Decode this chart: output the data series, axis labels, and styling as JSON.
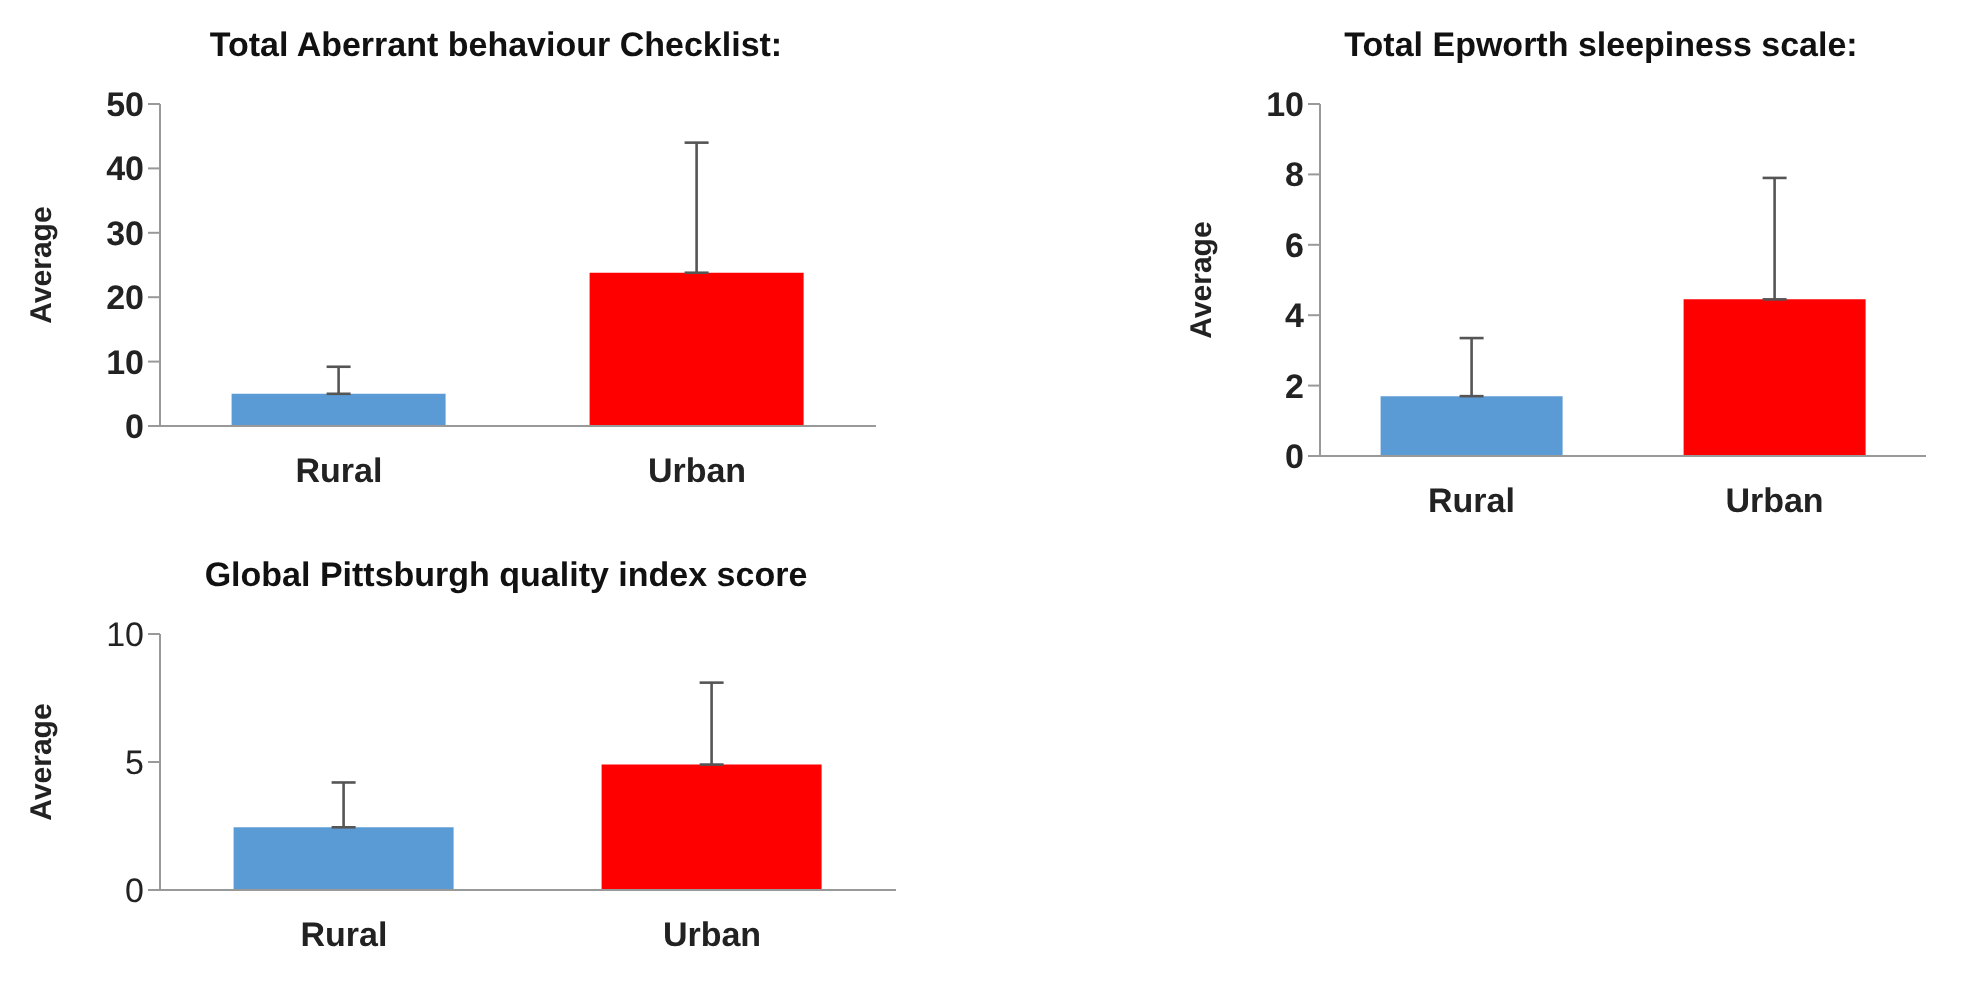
{
  "chart_data": [
    {
      "type": "bar",
      "title": "Total Aberrant behaviour Checklist:",
      "ylabel": "Average",
      "categories": [
        "Rural",
        "Urban"
      ],
      "values": [
        5,
        23.8
      ],
      "colors": [
        "#5b9bd5",
        "#ff0000"
      ],
      "errors": [
        [
          5,
          9.2
        ],
        [
          23.8,
          44
        ]
      ],
      "ylim": [
        0,
        50
      ],
      "yticks": [
        0,
        10,
        20,
        30,
        40,
        50
      ],
      "grid": false,
      "legend": false
    },
    {
      "type": "bar",
      "title": "Total Epworth sleepiness scale:",
      "ylabel": "Average",
      "categories": [
        "Rural",
        "Urban"
      ],
      "values": [
        1.7,
        4.45
      ],
      "colors": [
        "#5b9bd5",
        "#ff0000"
      ],
      "errors": [
        [
          1.7,
          3.35
        ],
        [
          4.45,
          7.9
        ]
      ],
      "ylim": [
        0,
        10
      ],
      "yticks": [
        0,
        2,
        4,
        6,
        8,
        10
      ],
      "grid": false,
      "legend": false
    },
    {
      "type": "bar",
      "title": "Global Pittsburgh quality index score",
      "ylabel": "Average",
      "categories": [
        "Rural",
        "Urban"
      ],
      "values": [
        2.45,
        4.9
      ],
      "colors": [
        "#5b9bd5",
        "#ff0000"
      ],
      "errors": [
        [
          2.45,
          4.2
        ],
        [
          4.9,
          8.1
        ]
      ],
      "ylim": [
        0,
        10
      ],
      "yticks": [
        0,
        5,
        10
      ],
      "grid": false,
      "legend": false
    }
  ]
}
